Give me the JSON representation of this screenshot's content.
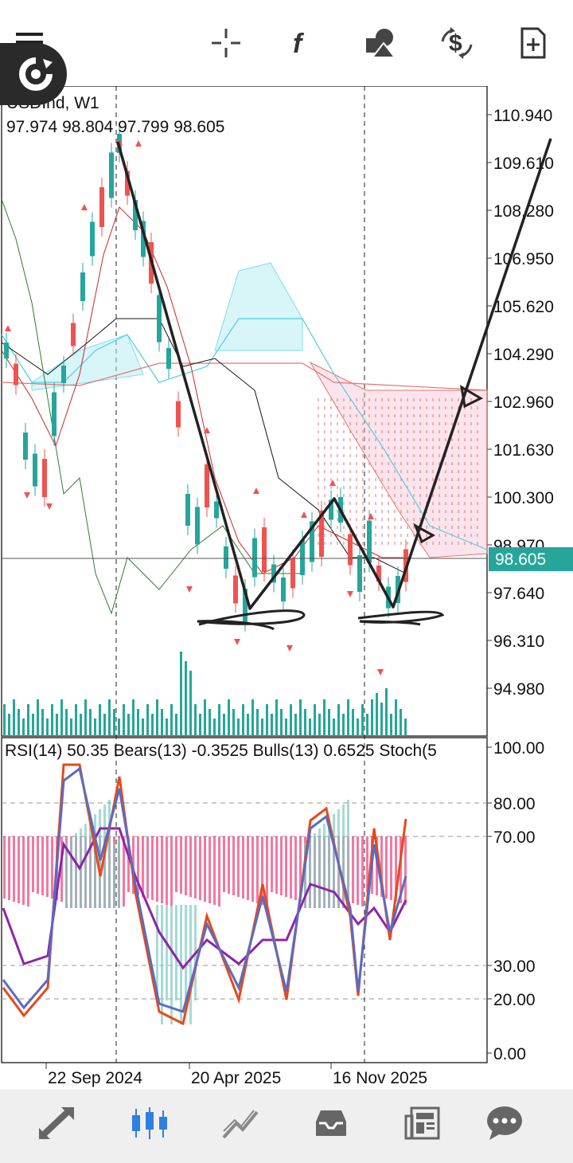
{
  "toolbar": {
    "menu_icon": "hamburger-menu-icon",
    "crosshair_icon": "crosshair-icon",
    "indicators_icon": "function-f-icon",
    "objects_icon": "shapes-icon",
    "trade_icon": "dollar-exchange-icon",
    "new_order_icon": "new-document-plus-icon",
    "refresh_icon": "refresh-circle-icon"
  },
  "main_chart": {
    "symbol_label": "USDInd, W1",
    "ohlc_label": "97.974 98.804 97.799 98.605",
    "current_price": "98.605",
    "price_ticks": [
      "110.940",
      "109.610",
      "108.280",
      "106.950",
      "105.620",
      "104.290",
      "102.960",
      "101.630",
      "100.300",
      "98.970",
      "97.640",
      "96.310",
      "94.980"
    ]
  },
  "sub_chart": {
    "indicator_label": "RSI(14) 50.35 Bears(13) -0.3525 Bulls(13) 0.6525 Stoch(5",
    "ticks": [
      "100.00",
      "80.00",
      "70.00",
      "30.00",
      "20.00",
      "0.00"
    ]
  },
  "time_axis": {
    "labels": [
      "22 Sep 2024",
      "20 Apr 2025",
      "16 Nov 2025"
    ]
  },
  "bottom_nav": {
    "items": [
      {
        "icon": "quotes-arrows-icon"
      },
      {
        "icon": "candlestick-chart-icon"
      },
      {
        "icon": "trade-line-icon"
      },
      {
        "icon": "history-inbox-icon"
      },
      {
        "icon": "news-icon"
      },
      {
        "icon": "messages-chat-icon"
      }
    ]
  },
  "colors": {
    "bull": "#26a69a",
    "bear": "#ef5350",
    "active_nav": "#2f7fe0",
    "price_badge": "#26a69a"
  }
}
